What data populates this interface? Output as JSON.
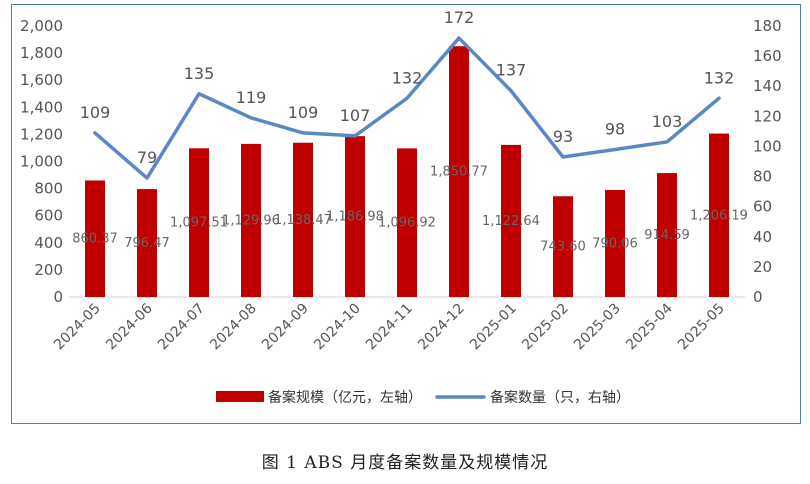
{
  "chart_data": {
    "type": "bar+line",
    "categories": [
      "2024-05",
      "2024-06",
      "2024-07",
      "2024-08",
      "2024-09",
      "2024-10",
      "2024-11",
      "2024-12",
      "2025-01",
      "2025-02",
      "2025-03",
      "2025-04",
      "2025-05"
    ],
    "series": [
      {
        "name": "备案规模（亿元，左轴）",
        "type": "bar",
        "axis": "left",
        "color": "#c00000",
        "values": [
          860.37,
          796.47,
          1097.51,
          1129.96,
          1138.47,
          1186.98,
          1096.92,
          1850.77,
          1122.64,
          743.6,
          790.06,
          914.59,
          1206.19
        ],
        "labels": [
          "860.37",
          "796.47",
          "1,097.51",
          "1,129.96",
          "1,138.47",
          "1,186.98",
          "1,096.92",
          "1,850.77",
          "1,122.64",
          "743.60",
          "790.06",
          "914.59",
          "1,206.19"
        ]
      },
      {
        "name": "备案数量（只，右轴）",
        "type": "line",
        "axis": "right",
        "color": "#5b87c5",
        "values": [
          109,
          79,
          135,
          119,
          109,
          107,
          132,
          172,
          137,
          93,
          98,
          103,
          132
        ],
        "labels": [
          "109",
          "79",
          "135",
          "119",
          "109",
          "107",
          "132",
          "172",
          "137",
          "93",
          "98",
          "103",
          "132"
        ]
      }
    ],
    "y_left": {
      "min": 0,
      "max": 2000,
      "step": 200,
      "tick_labels": [
        "0",
        "200",
        "400",
        "600",
        "800",
        "1,000",
        "1,200",
        "1,400",
        "1,600",
        "1,800",
        "2,000"
      ]
    },
    "y_right": {
      "min": 0,
      "max": 180,
      "step": 20,
      "tick_labels": [
        "0",
        "20",
        "40",
        "60",
        "80",
        "100",
        "120",
        "140",
        "160",
        "180"
      ]
    },
    "legend_position": "bottom",
    "grid": false
  },
  "caption": "图 1   ABS 月度备案数量及规模情况"
}
